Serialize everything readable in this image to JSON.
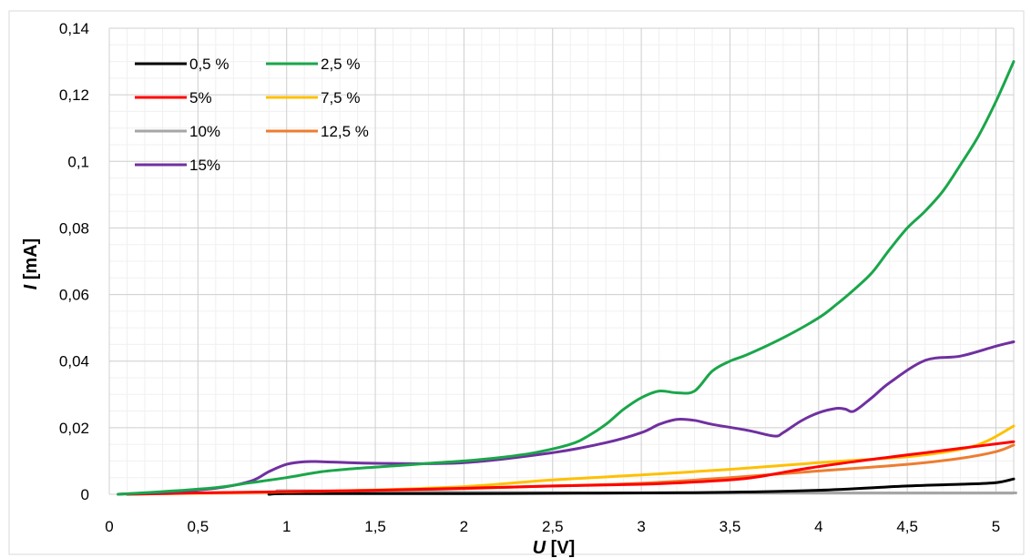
{
  "chart_data": {
    "type": "line",
    "xlabel": "U [V]",
    "xlabel_var": "U",
    "xlabel_unit": " [V]",
    "ylabel": "I [mA]",
    "ylabel_var": "I",
    "ylabel_unit": " [mA]",
    "xlim": [
      0,
      5.1
    ],
    "ylim": [
      0,
      0.14
    ],
    "x_ticks": [
      0,
      0.5,
      1,
      1.5,
      2,
      2.5,
      3,
      3.5,
      4,
      4.5,
      5
    ],
    "x_tick_labels": [
      "0",
      "0,5",
      "1",
      "1,5",
      "2",
      "2,5",
      "3",
      "3,5",
      "4",
      "4,5",
      "5"
    ],
    "y_ticks": [
      0,
      0.02,
      0.04,
      0.06,
      0.08,
      0.1,
      0.12,
      0.14
    ],
    "y_tick_labels": [
      "0",
      "0,02",
      "0,04",
      "0,06",
      "0,08",
      "0,1",
      "0,12",
      "0,14"
    ],
    "grid": "major and minor",
    "legend_position": "top-left",
    "series": [
      {
        "name": "0,5 %",
        "color": "#000000",
        "x": [
          0.9,
          1.0,
          1.5,
          2.0,
          2.5,
          3.0,
          3.5,
          4.0,
          4.5,
          4.8,
          5.0,
          5.1
        ],
        "y": [
          0,
          0.0002,
          0.0002,
          0.0002,
          0.0003,
          0.0004,
          0.0006,
          0.0012,
          0.0025,
          0.003,
          0.0035,
          0.0046
        ]
      },
      {
        "name": "2,5 %",
        "color": "#1aa64a",
        "x": [
          0.05,
          0.3,
          0.6,
          0.8,
          1.0,
          1.2,
          1.4,
          1.6,
          1.8,
          2.0,
          2.2,
          2.4,
          2.6,
          2.7,
          2.8,
          2.9,
          3.0,
          3.1,
          3.2,
          3.3,
          3.4,
          3.5,
          3.6,
          3.8,
          4.0,
          4.1,
          4.2,
          4.3,
          4.4,
          4.5,
          4.6,
          4.7,
          4.8,
          4.9,
          5.0,
          5.1
        ],
        "y": [
          0,
          0.0008,
          0.002,
          0.0035,
          0.005,
          0.0068,
          0.0078,
          0.0085,
          0.0093,
          0.01,
          0.011,
          0.0125,
          0.015,
          0.0175,
          0.021,
          0.0255,
          0.029,
          0.031,
          0.0305,
          0.031,
          0.037,
          0.04,
          0.042,
          0.047,
          0.053,
          0.057,
          0.0615,
          0.0665,
          0.0735,
          0.08,
          0.085,
          0.091,
          0.099,
          0.1075,
          0.118,
          0.13
        ]
      },
      {
        "name": "5%",
        "color": "#ff0000",
        "x": [
          0.1,
          0.5,
          1.0,
          1.5,
          2.0,
          2.5,
          3.0,
          3.3,
          3.6,
          3.9,
          4.2,
          4.5,
          4.8,
          5.1
        ],
        "y": [
          0,
          0.0004,
          0.0008,
          0.0012,
          0.0018,
          0.0025,
          0.003,
          0.0037,
          0.0048,
          0.0075,
          0.0098,
          0.0118,
          0.0138,
          0.0158
        ]
      },
      {
        "name": "7,5 %",
        "color": "#ffc000",
        "x": [
          0.1,
          0.5,
          1.0,
          1.5,
          2.0,
          2.5,
          3.0,
          3.5,
          4.0,
          4.5,
          4.8,
          4.95,
          5.1
        ],
        "y": [
          0,
          0.0003,
          0.0007,
          0.0013,
          0.0023,
          0.0043,
          0.0058,
          0.0075,
          0.0095,
          0.0113,
          0.0135,
          0.016,
          0.0205
        ]
      },
      {
        "name": "10%",
        "color": "#a6a6a6",
        "x": [
          0.95,
          1.0,
          1.5,
          2.0,
          3.0,
          4.0,
          5.0,
          5.1
        ],
        "y": [
          0.001,
          0.0011,
          0.0009,
          0.0006,
          0.0004,
          0.0004,
          0.0004,
          0.0004
        ]
      },
      {
        "name": "12,5 %",
        "color": "#ed7d31",
        "x": [
          0.1,
          0.5,
          1.0,
          1.5,
          2.0,
          2.5,
          3.0,
          3.5,
          4.0,
          4.5,
          4.8,
          5.0,
          5.1
        ],
        "y": [
          0,
          0.0004,
          0.0007,
          0.0012,
          0.0017,
          0.0025,
          0.0033,
          0.005,
          0.007,
          0.009,
          0.0108,
          0.0128,
          0.0148
        ]
      },
      {
        "name": "15%",
        "color": "#7030a0",
        "x": [
          0.05,
          0.3,
          0.6,
          0.8,
          0.9,
          1.0,
          1.1,
          1.2,
          1.5,
          2.0,
          2.5,
          2.8,
          3.0,
          3.1,
          3.2,
          3.3,
          3.4,
          3.6,
          3.75,
          3.8,
          3.9,
          4.0,
          4.1,
          4.15,
          4.2,
          4.3,
          4.4,
          4.6,
          4.8,
          5.0,
          5.1
        ],
        "y": [
          0,
          0.0006,
          0.0018,
          0.004,
          0.0068,
          0.009,
          0.0098,
          0.0098,
          0.0093,
          0.0095,
          0.0125,
          0.0155,
          0.0185,
          0.021,
          0.0225,
          0.0222,
          0.021,
          0.0192,
          0.0175,
          0.0185,
          0.022,
          0.0245,
          0.0258,
          0.0256,
          0.025,
          0.029,
          0.0335,
          0.0402,
          0.0415,
          0.0445,
          0.0458
        ]
      }
    ]
  }
}
